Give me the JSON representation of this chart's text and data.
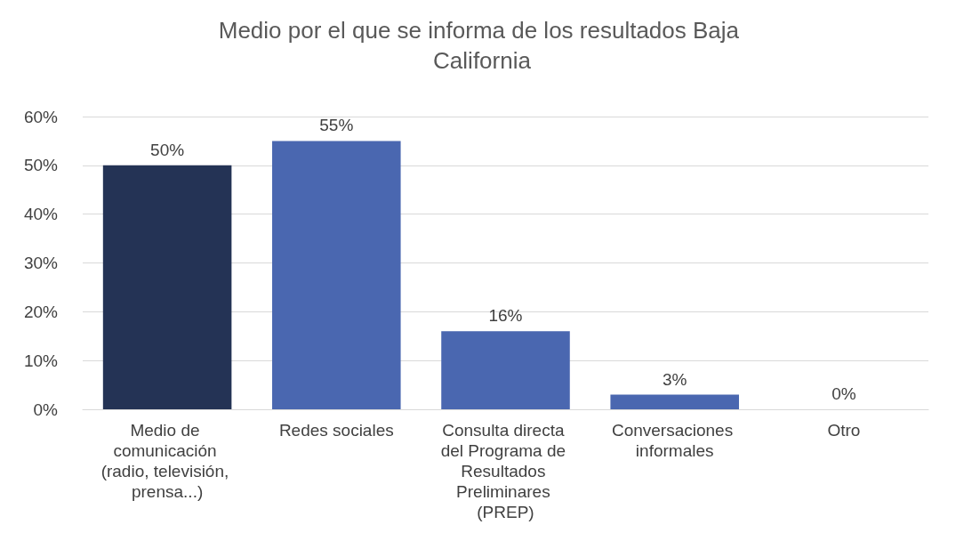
{
  "chart_data": {
    "type": "bar",
    "title": "Medio por el que se informa de los resultados Baja California",
    "categories": [
      "Medio de comunicación (radio, televisión, prensa...)",
      "Redes sociales",
      "Consulta directa del Programa de Resultados Preliminares (PREP)",
      "Conversaciones informales",
      "Otro"
    ],
    "values": [
      50,
      55,
      16,
      3,
      0
    ],
    "colors": [
      "#243355",
      "#4a67b0",
      "#4a67b0",
      "#4a67b0",
      "#4a67b0"
    ],
    "value_labels": [
      "50%",
      "55%",
      "16%",
      "3%",
      "0%"
    ],
    "ylim": [
      0,
      60
    ],
    "yticks": [
      {
        "value": 0,
        "label": "0%"
      },
      {
        "value": 10,
        "label": "10%"
      },
      {
        "value": 20,
        "label": "20%"
      },
      {
        "value": 30,
        "label": "30%"
      },
      {
        "value": 40,
        "label": "40%"
      },
      {
        "value": 50,
        "label": "50%"
      },
      {
        "value": 60,
        "label": "60%"
      }
    ],
    "grid": "y"
  }
}
